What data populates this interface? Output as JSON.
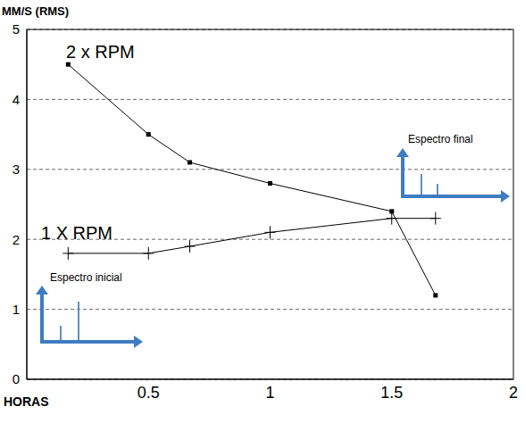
{
  "chart_data": {
    "type": "line",
    "y_label": "MM/S (RMS)",
    "x_label": "HORAS",
    "x": [
      0.17,
      0.5,
      0.67,
      1.0,
      1.5,
      1.68
    ],
    "series": [
      {
        "name": "2 x RPM",
        "color": "#000000",
        "marker": "square",
        "values": [
          4.5,
          3.5,
          3.1,
          2.8,
          2.4,
          1.2
        ]
      },
      {
        "name": "1 X RPM",
        "color": "#000000",
        "marker": "cross",
        "values": [
          1.8,
          1.8,
          1.9,
          2.1,
          2.3,
          2.3
        ]
      }
    ],
    "xlim": [
      0,
      2
    ],
    "xticks": [
      0.5,
      1,
      1.5,
      2
    ],
    "ylim": [
      0,
      5
    ],
    "yticks": [
      0,
      1,
      2,
      3,
      4,
      5
    ],
    "grid": true,
    "annotations": [
      "Espectro inicial",
      "Espectro final"
    ]
  }
}
